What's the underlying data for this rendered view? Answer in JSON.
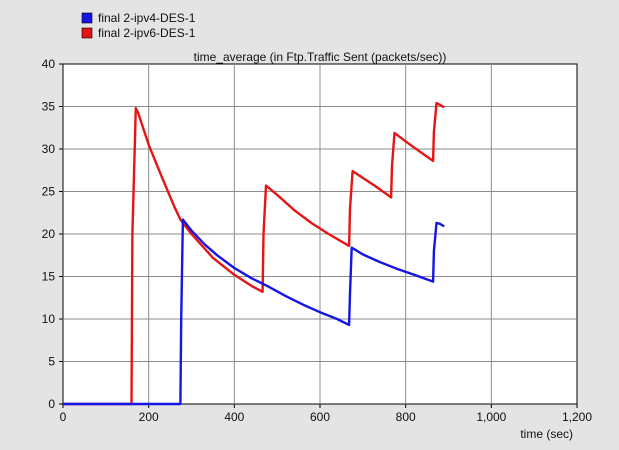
{
  "chart_data": {
    "type": "line",
    "title": "time_average (in Ftp.Traffic Sent (packets/sec))",
    "xlabel": "time (sec)",
    "ylabel": "",
    "xlim": [
      0,
      1200
    ],
    "ylim": [
      0,
      40
    ],
    "x_ticks": [
      0,
      200,
      400,
      600,
      800,
      1000,
      1200
    ],
    "x_tick_labels": [
      "0",
      "200",
      "400",
      "600",
      "800",
      "1,000",
      "1,200"
    ],
    "y_ticks": [
      0,
      5,
      10,
      15,
      20,
      25,
      30,
      35,
      40
    ],
    "y_tick_labels": [
      "0",
      "5",
      "10",
      "15",
      "20",
      "25",
      "30",
      "35",
      "40"
    ],
    "grid": true,
    "legend_position": "top-left, above plot",
    "series": [
      {
        "name": "final 2-ipv4-DES-1",
        "color": "#1515e6",
        "x": [
          0,
          274,
          276,
          280,
          300,
          330,
          360,
          400,
          440,
          480,
          520,
          560,
          600,
          640,
          668,
          670,
          674,
          700,
          740,
          780,
          820,
          864,
          866,
          872,
          880,
          890
        ],
        "y": [
          0,
          0,
          10,
          21.7,
          20.4,
          18.8,
          17.5,
          16.0,
          14.8,
          13.8,
          12.7,
          11.7,
          10.8,
          10.0,
          9.3,
          13.0,
          18.4,
          17.6,
          16.7,
          15.9,
          15.2,
          14.4,
          18.0,
          21.3,
          21.2,
          20.9
        ]
      },
      {
        "name": "final 2-ipv6-DES-1",
        "color": "#e61515",
        "x": [
          0,
          160,
          162,
          170,
          175,
          200,
          230,
          260,
          274,
          300,
          350,
          400,
          440,
          466,
          468,
          474,
          500,
          540,
          580,
          620,
          668,
          670,
          676,
          700,
          730,
          766,
          768,
          774,
          800,
          830,
          864,
          866,
          872,
          880,
          890
        ],
        "y": [
          0,
          0,
          20,
          34.8,
          34.3,
          30.5,
          26.8,
          23.2,
          21.7,
          20.0,
          17.2,
          15.2,
          13.9,
          13.2,
          20.0,
          25.7,
          24.6,
          22.8,
          21.3,
          20.0,
          18.6,
          23.0,
          27.4,
          26.6,
          25.6,
          24.3,
          28.0,
          31.9,
          30.9,
          29.8,
          28.6,
          32.0,
          35.4,
          35.2,
          34.9
        ]
      }
    ]
  }
}
